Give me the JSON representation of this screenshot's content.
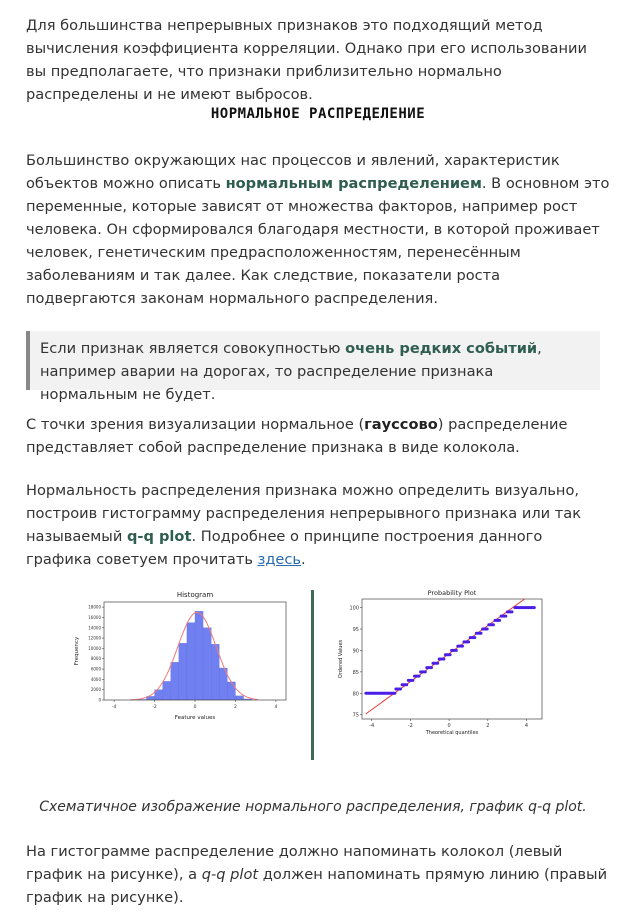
{
  "para1": "Для большинства непрерывных признаков это подходящий метод вычисления коэффициента корреляции. Однако при его использовании вы предполагаете, что признаки приблизительно нормально распределены и не имеют выбросов.",
  "heading": "НОРМАЛЬНОЕ РАСПРЕДЕЛЕНИЕ",
  "para2": {
    "t1": "Большинство окружающих нас процессов и явлений, характеристик объектов можно описать ",
    "bold": "нормальным распределением",
    "t2": ". В основном это переменные, которые зависят от множества факторов, например рост человека. Он сформировался благодаря местности, в которой проживает человек, генетическим предрасположенностям, перенесённым заболеваниям и так далее. Как следствие, показатели роста подвергаются законам нормального распределения."
  },
  "quote": {
    "t1": "Если признак является совокупностью ",
    "bold": "очень редких событий",
    "t2": ", например аварии на дорогах, то распределение признака нормальным не будет."
  },
  "para3": {
    "t1": "С точки зрения визуализации нормальное (",
    "bold": "гауссово",
    "t2": ") распределение представляет собой распределение признака в виде колокола."
  },
  "para4": {
    "t1": "Нормальность распределения признака можно определить визуально, построив гистограмму распределения непрерывного признака или так называемый ",
    "bold": "q-q plot",
    "t2": ". Подробнее о принципе построения данного графика советуем прочитать ",
    "link": "здесь",
    "t3": "."
  },
  "caption": "Схематичное изображение нормального распределения, график q-q plot.",
  "para5": {
    "t1": "На гистограмме распределение должно напоминать колокол (левый график на рисунке), а ",
    "i1": "q-q plot",
    "t2": " должен напоминать прямую линию (правый график на рисунке)."
  },
  "chart_data": [
    {
      "type": "bar",
      "title": "Histogram",
      "xlabel": "Feature values",
      "ylabel": "Frequency",
      "x_ticks": [
        "-4",
        "-2",
        "0",
        "2",
        "4"
      ],
      "y_ticks": [
        "0",
        "2000",
        "4000",
        "6000",
        "8000",
        "10000",
        "12000",
        "14000",
        "16000",
        "18000"
      ],
      "xlim": [
        -4.5,
        4.5
      ],
      "ylim": [
        0,
        19000
      ],
      "bins": [
        {
          "x0": -2.8,
          "x1": -2.4,
          "value": 100
        },
        {
          "x0": -2.4,
          "x1": -2.0,
          "value": 700
        },
        {
          "x0": -2.0,
          "x1": -1.6,
          "value": 2000
        },
        {
          "x0": -1.6,
          "x1": -1.2,
          "value": 3600
        },
        {
          "x0": -1.2,
          "x1": -0.8,
          "value": 7300
        },
        {
          "x0": -0.8,
          "x1": -0.4,
          "value": 11000
        },
        {
          "x0": -0.4,
          "x1": 0.0,
          "value": 15000
        },
        {
          "x0": 0.0,
          "x1": 0.4,
          "value": 17200
        },
        {
          "x0": 0.4,
          "x1": 0.8,
          "value": 14000
        },
        {
          "x0": 0.8,
          "x1": 1.2,
          "value": 10800
        },
        {
          "x0": 1.2,
          "x1": 1.6,
          "value": 6200
        },
        {
          "x0": 1.6,
          "x1": 2.0,
          "value": 3500
        },
        {
          "x0": 2.0,
          "x1": 2.4,
          "value": 800
        },
        {
          "x0": 2.4,
          "x1": 2.8,
          "value": 200
        }
      ],
      "curve": {
        "mean": 0.1,
        "sd": 0.95,
        "peak": 17000
      },
      "colors": {
        "bar": "#7080f0",
        "curve": "#f07878"
      }
    },
    {
      "type": "scatter",
      "title": "Probability Plot",
      "xlabel": "Theoretical quantiles",
      "ylabel": "Ordered Values",
      "x_ticks": [
        "-4",
        "-2",
        "0",
        "2",
        "4"
      ],
      "y_ticks": [
        "75",
        "80",
        "85",
        "90",
        "95",
        "100"
      ],
      "xlim": [
        -4.5,
        4.8
      ],
      "ylim": [
        74,
        102
      ],
      "fit_line": [
        [
          -4.3,
          75.2
        ],
        [
          3.9,
          102.0
        ]
      ],
      "flat_low": {
        "y": 80,
        "x_from": -4.3,
        "x_to": -2.8
      },
      "flat_high": {
        "y": 100,
        "x_from": 3.4,
        "x_to": 4.4
      },
      "colors": {
        "points": "#4a1fe6",
        "line": "#e03838"
      }
    }
  ]
}
